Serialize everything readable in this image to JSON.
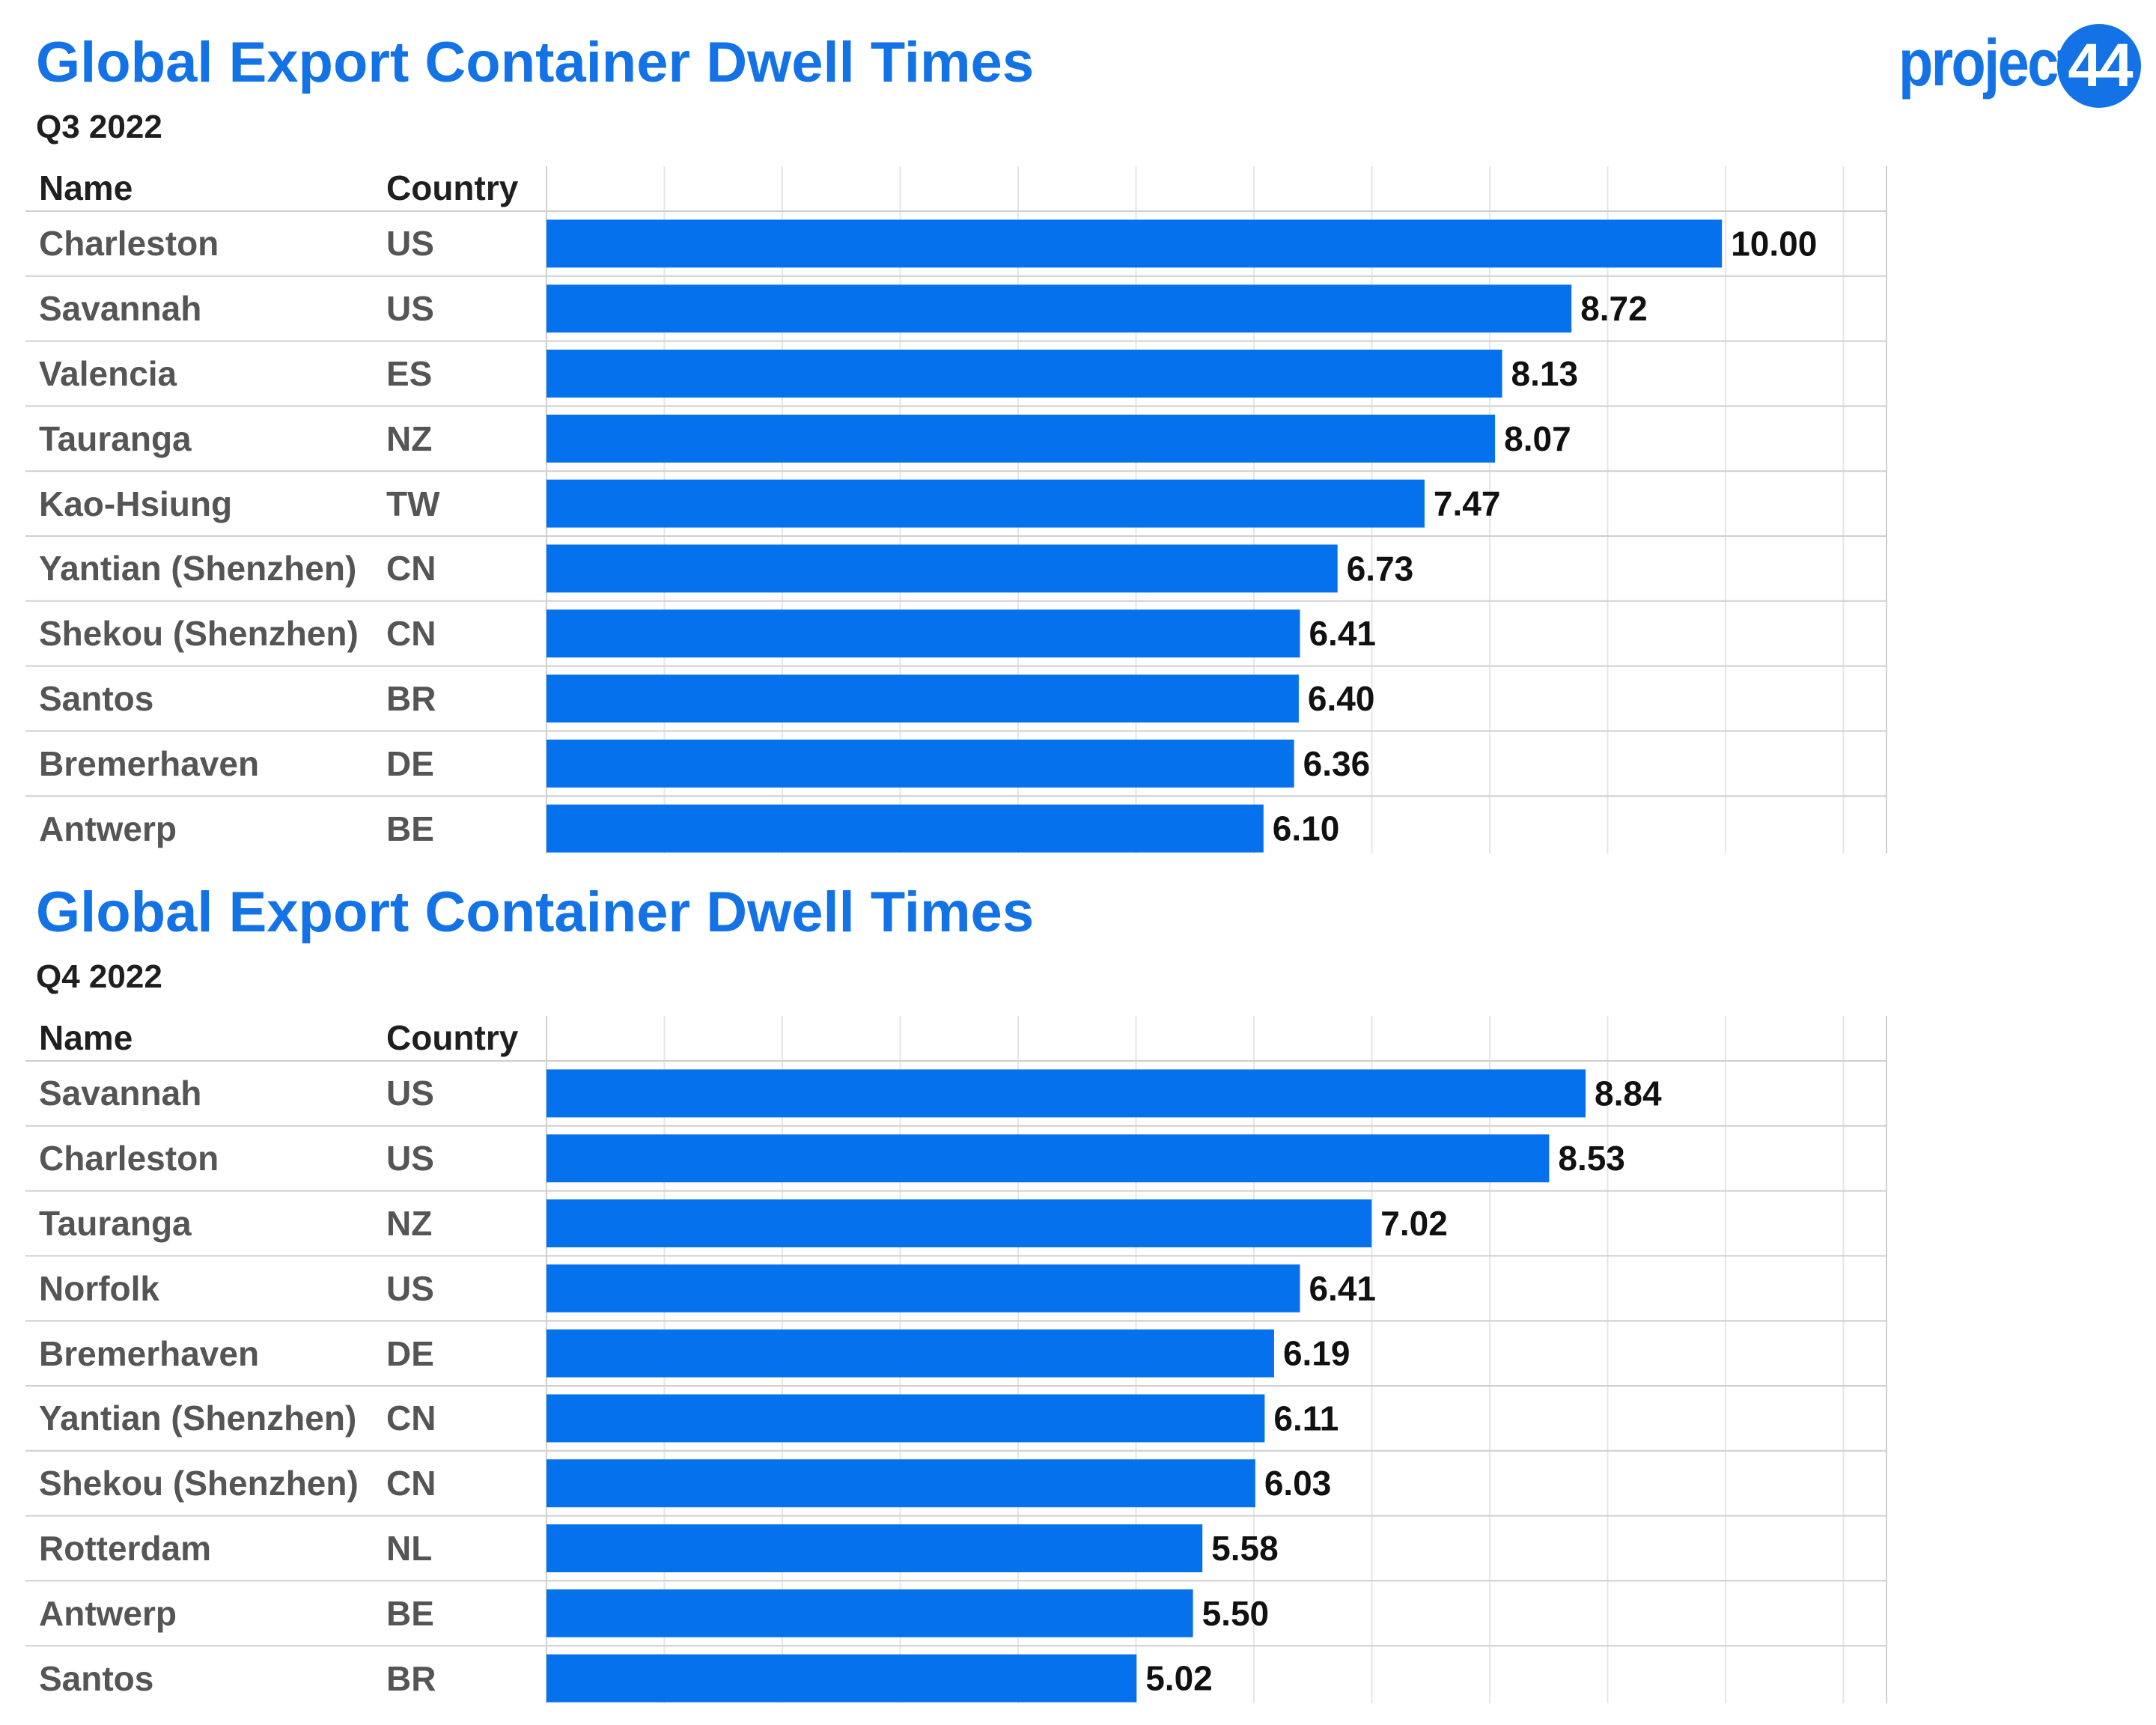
{
  "logo": {
    "text": "project",
    "number": "44"
  },
  "columns": {
    "name": "Name",
    "country": "Country"
  },
  "colors": {
    "title": "#1373e6",
    "bar": "#0671ec",
    "grid": "#e6e6e6",
    "rule": "#cfcfcf"
  },
  "chart_data": [
    {
      "type": "bar",
      "orientation": "horizontal",
      "title": "Global Export Container Dwell Times",
      "subtitle": "Q3 2022",
      "xlim": [
        0,
        11.4
      ],
      "grid": true,
      "rows": [
        {
          "name": "Charleston",
          "country": "US",
          "value": 10.0,
          "label": "10.00"
        },
        {
          "name": "Savannah",
          "country": "US",
          "value": 8.72,
          "label": "8.72"
        },
        {
          "name": "Valencia",
          "country": "ES",
          "value": 8.13,
          "label": "8.13"
        },
        {
          "name": "Tauranga",
          "country": "NZ",
          "value": 8.07,
          "label": "8.07"
        },
        {
          "name": "Kao-Hsiung",
          "country": "TW",
          "value": 7.47,
          "label": "7.47"
        },
        {
          "name": "Yantian (Shenzhen)",
          "country": "CN",
          "value": 6.73,
          "label": "6.73"
        },
        {
          "name": "Shekou (Shenzhen)",
          "country": "CN",
          "value": 6.41,
          "label": "6.41"
        },
        {
          "name": "Santos",
          "country": "BR",
          "value": 6.4,
          "label": "6.40"
        },
        {
          "name": "Bremerhaven",
          "country": "DE",
          "value": 6.36,
          "label": "6.36"
        },
        {
          "name": "Antwerp",
          "country": "BE",
          "value": 6.1,
          "label": "6.10"
        }
      ]
    },
    {
      "type": "bar",
      "orientation": "horizontal",
      "title": "Global Export Container Dwell Times",
      "subtitle": "Q4 2022",
      "xlim": [
        0,
        11.4
      ],
      "grid": true,
      "rows": [
        {
          "name": "Savannah",
          "country": "US",
          "value": 8.84,
          "label": "8.84"
        },
        {
          "name": "Charleston",
          "country": "US",
          "value": 8.53,
          "label": "8.53"
        },
        {
          "name": "Tauranga",
          "country": "NZ",
          "value": 7.02,
          "label": "7.02"
        },
        {
          "name": "Norfolk",
          "country": "US",
          "value": 6.41,
          "label": "6.41"
        },
        {
          "name": "Bremerhaven",
          "country": "DE",
          "value": 6.19,
          "label": "6.19"
        },
        {
          "name": "Yantian (Shenzhen)",
          "country": "CN",
          "value": 6.11,
          "label": "6.11"
        },
        {
          "name": "Shekou (Shenzhen)",
          "country": "CN",
          "value": 6.03,
          "label": "6.03"
        },
        {
          "name": "Rotterdam",
          "country": "NL",
          "value": 5.58,
          "label": "5.58"
        },
        {
          "name": "Antwerp",
          "country": "BE",
          "value": 5.5,
          "label": "5.50"
        },
        {
          "name": "Santos",
          "country": "BR",
          "value": 5.02,
          "label": "5.02"
        }
      ]
    }
  ]
}
